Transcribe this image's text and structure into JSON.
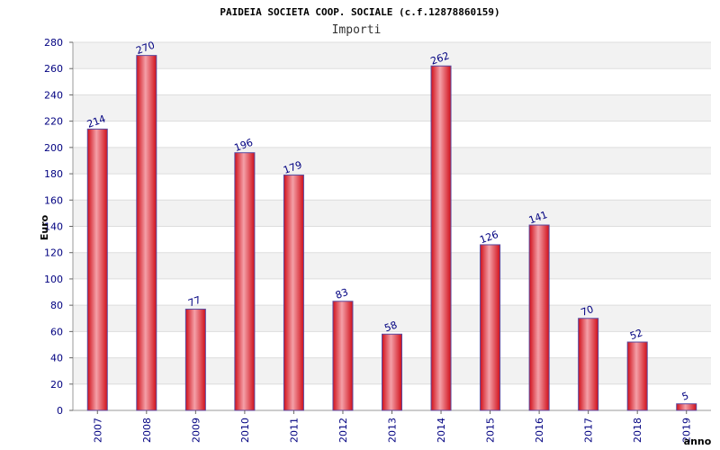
{
  "chart_data": {
    "type": "bar",
    "title": "PAIDEIA SOCIETA COOP. SOCIALE (c.f.12878860159)",
    "subtitle": "Importi",
    "xlabel": "anno",
    "ylabel": "Euro",
    "categories": [
      "2007",
      "2008",
      "2009",
      "2010",
      "2011",
      "2012",
      "2013",
      "2014",
      "2015",
      "2016",
      "2017",
      "2018",
      "2019"
    ],
    "values": [
      214,
      270,
      77,
      196,
      179,
      83,
      58,
      262,
      126,
      141,
      70,
      52,
      5
    ],
    "ylim": [
      0,
      280
    ],
    "yticks": [
      0,
      20,
      40,
      60,
      80,
      100,
      120,
      140,
      160,
      180,
      200,
      220,
      240,
      260,
      280
    ],
    "grid": true,
    "colors": {
      "bar": "#e8101a",
      "bar_highlight": "#f4a0a8",
      "bar_edge": "#5a4aa0",
      "band": "#f2f2f2",
      "gridline": "#dddddd",
      "text": "#000080"
    }
  }
}
